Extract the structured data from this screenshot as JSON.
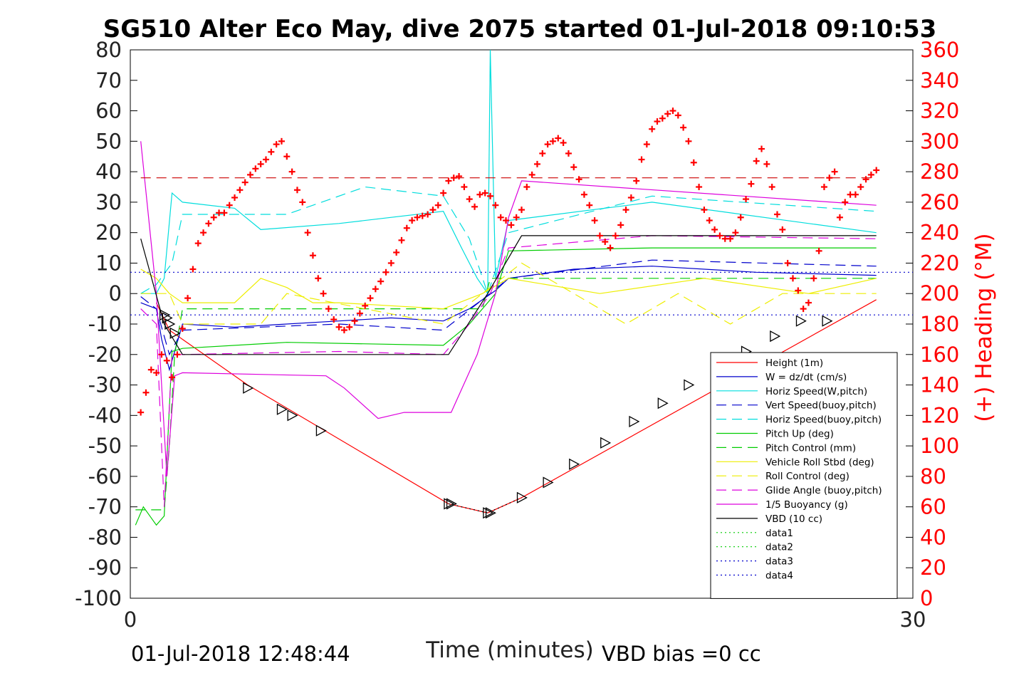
{
  "chart_data": {
    "type": "line",
    "title": "SG510 Alter Eco May, dive 2075 started 01-Jul-2018 09:10:53",
    "xlabel": "Time (minutes)",
    "ylabel_right": "(+) Heading (°M)",
    "xlim": [
      0,
      30
    ],
    "ylim": [
      -100,
      80
    ],
    "ylim_right": [
      0,
      360
    ],
    "x_ticks": [
      "0",
      "30"
    ],
    "y_ticks": [
      "80",
      "70",
      "60",
      "50",
      "40",
      "30",
      "20",
      "10",
      "0",
      "-10",
      "-20",
      "-30",
      "-40",
      "-50",
      "-60",
      "-70",
      "-80",
      "-90",
      "-100"
    ],
    "y_ticks_right": [
      "360",
      "340",
      "320",
      "300",
      "280",
      "260",
      "240",
      "220",
      "200",
      "180",
      "160",
      "140",
      "120",
      "100",
      "80",
      "60",
      "40",
      "20",
      "0"
    ],
    "grid": false,
    "legend_position": "lower-right",
    "footer_left": "01-Jul-2018 12:48:44",
    "footer_right": "VBD bias =0 cc",
    "series": [
      {
        "name": "Height (1m)",
        "color": "#ff0000",
        "style": "solid",
        "x": [
          1.0,
          1.5,
          4.5,
          12.2,
          13.7,
          15.0,
          28.6
        ],
        "y": [
          -3,
          -12,
          -30,
          -69,
          -72,
          -67,
          -2
        ]
      },
      {
        "name": "W = dz/dt (cm/s)",
        "color": "#0000cc",
        "style": "solid",
        "x": [
          0.4,
          1.0,
          1.2,
          1.5,
          2.0,
          4.0,
          8.0,
          10.0,
          12.0,
          13.0,
          14.0,
          14.5,
          17.0,
          20.0,
          24.0,
          28.6
        ],
        "y": [
          -3,
          -5,
          -15,
          -25,
          -10,
          -11,
          -9,
          -8,
          -9,
          -5,
          1,
          5,
          8,
          9,
          7,
          6
        ]
      },
      {
        "name": "Horiz Speed(W,pitch)",
        "color": "#00dddd",
        "style": "solid",
        "x": [
          0.4,
          1.0,
          1.3,
          1.6,
          2.0,
          4.0,
          5.0,
          8.0,
          12.0,
          12.7,
          13.3,
          13.7,
          13.8,
          14.0,
          14.5,
          20.0,
          28.6
        ],
        "y": [
          0,
          0,
          5,
          33,
          30,
          28,
          21,
          23,
          27,
          15,
          5,
          0,
          80,
          5,
          24,
          30,
          20
        ]
      },
      {
        "name": "Vert Speed(buoy,pitch)",
        "color": "#0000cc",
        "style": "dash",
        "x": [
          0.4,
          1.0,
          1.5,
          2.0,
          8.0,
          12.0,
          13.5,
          14.5,
          20.0,
          28.6
        ],
        "y": [
          -1,
          -5,
          -20,
          -12,
          -10,
          -12,
          -2,
          5,
          11,
          9
        ]
      },
      {
        "name": "Horiz Speed(buoy,pitch)",
        "color": "#00dddd",
        "style": "dash",
        "x": [
          0.4,
          1.0,
          1.6,
          2.0,
          6.0,
          9.0,
          12.0,
          13.0,
          13.7,
          14.5,
          20.0,
          28.6
        ],
        "y": [
          0,
          3,
          10,
          26,
          26,
          35,
          32,
          18,
          0,
          20,
          32,
          27
        ]
      },
      {
        "name": "Pitch Up (deg)",
        "color": "#00cc00",
        "style": "solid",
        "x": [
          0.2,
          0.5,
          1.0,
          1.3,
          1.6,
          2.0,
          6.0,
          12.0,
          13.0,
          14.0,
          14.5,
          20.0,
          28.6
        ],
        "y": [
          -76,
          -70,
          -76,
          -73,
          -19,
          -18,
          -16,
          -17,
          -10,
          0,
          14,
          15,
          15
        ]
      },
      {
        "name": "Pitch Control (mm)",
        "color": "#00cc00",
        "style": "dash",
        "x": [
          0.2,
          1.3,
          1.5,
          1.7,
          2.0,
          12.2,
          13.5,
          13.8,
          28.6
        ],
        "y": [
          -71,
          -71,
          -50,
          -20,
          -5,
          -5,
          -5,
          5,
          5
        ]
      },
      {
        "name": "Vehicle Roll Stbd (deg)",
        "color": "#eeee00",
        "style": "solid",
        "x": [
          0.4,
          1.0,
          1.5,
          2.0,
          4.0,
          5.0,
          6.0,
          7.0,
          8.0,
          12.0,
          13.5,
          14.5,
          18.0,
          22.0,
          26.0,
          28.6
        ],
        "y": [
          8,
          5,
          0,
          -3,
          -3,
          5,
          2,
          -3,
          -3,
          -5,
          0,
          5,
          0,
          5,
          0,
          5
        ]
      },
      {
        "name": "Roll Control (deg)",
        "color": "#eeee00",
        "style": "dash",
        "x": [
          0.4,
          1.5,
          2.0,
          5.0,
          6.0,
          12.0,
          13.5,
          15.0,
          17.0,
          19.0,
          21.0,
          23.0,
          25.0,
          28.6
        ],
        "y": [
          0,
          0,
          -10,
          -10,
          0,
          -10,
          0,
          10,
          0,
          -10,
          0,
          -10,
          0,
          0
        ]
      },
      {
        "name": "Glide Angle (buoy,pitch)",
        "color": "#dd00dd",
        "style": "dash",
        "x": [
          0.4,
          1.0,
          1.3,
          1.6,
          2.0,
          8.0,
          12.0,
          13.0,
          13.8,
          14.5,
          20.0,
          28.6
        ],
        "y": [
          -5,
          -10,
          -70,
          -20,
          -20,
          -19,
          -20,
          -10,
          0,
          15,
          19,
          18
        ]
      },
      {
        "name": "1/5 Buoyancy (g)",
        "color": "#dd00dd",
        "style": "solid",
        "x": [
          0.4,
          1.0,
          1.4,
          1.7,
          2.0,
          7.5,
          8.2,
          9.5,
          10.5,
          12.0,
          12.3,
          13.3,
          14.0,
          14.5,
          15.0,
          28.6
        ],
        "y": [
          50,
          0,
          -60,
          -27,
          -26,
          -27,
          -31,
          -41,
          -39,
          -39,
          -39,
          -20,
          0,
          25,
          37,
          29
        ]
      },
      {
        "name": "VBD (10 cc)",
        "color": "#000000",
        "style": "solid",
        "x": [
          0.4,
          1.3,
          2.0,
          12.2,
          13.7,
          15.0,
          28.6
        ],
        "y": [
          18,
          -10,
          -20,
          -20,
          0,
          19,
          19
        ]
      },
      {
        "name": "data1",
        "color": "#00cc00",
        "style": "dot",
        "x": [],
        "y": []
      },
      {
        "name": "data2",
        "color": "#00cc00",
        "style": "dot",
        "x": [],
        "y": []
      },
      {
        "name": "data3",
        "color": "#0000cc",
        "style": "dot",
        "x": [
          0,
          30
        ],
        "y": [
          7,
          7
        ]
      },
      {
        "name": "data4",
        "color": "#0000cc",
        "style": "dot",
        "x": [
          0,
          30
        ],
        "y": [
          -7,
          -7
        ]
      }
    ],
    "extra_lines": [
      {
        "color": "#cc0000",
        "style": "dash",
        "x": [
          0.4,
          28.6
        ],
        "y": [
          38,
          38
        ]
      },
      {
        "color": "#000000",
        "style": "dot",
        "x": [
          12.2,
          13.7,
          15.0
        ],
        "y": [
          -69,
          -72,
          -67
        ]
      }
    ],
    "markers": {
      "shape": "triangle-right",
      "color": "#000000",
      "x": [
        1.3,
        1.4,
        1.5,
        1.7,
        4.5,
        5.8,
        6.2,
        7.3,
        12.2,
        12.3,
        13.7,
        13.8,
        15.0,
        16.0,
        17.0,
        18.2,
        19.3,
        20.4,
        21.4,
        22.5,
        23.6,
        24.7,
        25.7,
        26.7
      ],
      "y": [
        -7,
        -8,
        -10,
        -13,
        -31,
        -38,
        -40,
        -45,
        -69,
        -69,
        -72,
        -72,
        -67,
        -62,
        -56,
        -49,
        -42,
        -36,
        -30,
        -26,
        -19,
        -14,
        -9,
        -9
      ]
    },
    "heading_right_axis": {
      "marker": "plus",
      "color": "#ff0000",
      "x": [
        0.4,
        0.6,
        0.8,
        1.0,
        1.2,
        1.4,
        1.6,
        1.8,
        2.0,
        2.2,
        2.4,
        2.6,
        2.8,
        3.0,
        3.2,
        3.4,
        3.6,
        3.8,
        4.0,
        4.2,
        4.4,
        4.6,
        4.8,
        5.0,
        5.2,
        5.4,
        5.6,
        5.8,
        6.0,
        6.2,
        6.4,
        6.6,
        6.8,
        7.0,
        7.2,
        7.4,
        7.6,
        7.8,
        8.0,
        8.2,
        8.4,
        8.6,
        8.8,
        9.0,
        9.2,
        9.4,
        9.6,
        9.8,
        10.0,
        10.2,
        10.4,
        10.6,
        10.8,
        11.0,
        11.2,
        11.4,
        11.6,
        11.8,
        12.0,
        12.2,
        12.4,
        12.6,
        12.8,
        13.0,
        13.2,
        13.4,
        13.6,
        13.8,
        14.0,
        14.2,
        14.4,
        14.6,
        14.8,
        15.0,
        15.2,
        15.4,
        15.6,
        15.8,
        16.0,
        16.2,
        16.4,
        16.6,
        16.8,
        17.0,
        17.2,
        17.4,
        17.6,
        17.8,
        18.0,
        18.2,
        18.4,
        18.6,
        18.8,
        19.0,
        19.2,
        19.4,
        19.6,
        19.8,
        20.0,
        20.2,
        20.4,
        20.6,
        20.8,
        21.0,
        21.2,
        21.4,
        21.6,
        21.8,
        22.0,
        22.2,
        22.4,
        22.6,
        22.8,
        23.0,
        23.2,
        23.4,
        23.6,
        23.8,
        24.0,
        24.2,
        24.4,
        24.6,
        24.8,
        25.0,
        25.2,
        25.4,
        25.6,
        25.8,
        26.0,
        26.2,
        26.4,
        26.6,
        26.8,
        27.0,
        27.2,
        27.4,
        27.6,
        27.8,
        28.0,
        28.2,
        28.4,
        28.6
      ],
      "y": [
        122,
        135,
        150,
        148,
        160,
        156,
        145,
        160,
        177,
        197,
        216,
        233,
        240,
        246,
        250,
        253,
        253,
        258,
        263,
        268,
        273,
        278,
        282,
        285,
        288,
        293,
        298,
        300,
        290,
        280,
        268,
        260,
        240,
        225,
        210,
        200,
        190,
        183,
        178,
        176,
        178,
        182,
        187,
        192,
        197,
        203,
        208,
        214,
        220,
        227,
        235,
        243,
        248,
        250,
        251,
        252,
        255,
        258,
        266,
        274,
        276,
        277,
        270,
        262,
        257,
        265,
        266,
        264,
        258,
        250,
        248,
        245,
        250,
        255,
        270,
        278,
        285,
        292,
        298,
        300,
        302,
        299,
        292,
        283,
        275,
        265,
        258,
        248,
        238,
        234,
        230,
        238,
        245,
        255,
        263,
        274,
        288,
        298,
        308,
        313,
        315,
        318,
        320,
        317,
        309,
        300,
        286,
        270,
        255,
        248,
        242,
        238,
        236,
        236,
        240,
        250,
        262,
        272,
        287,
        295,
        285,
        270,
        252,
        242,
        220,
        210,
        202,
        190,
        194,
        210,
        228,
        270,
        276,
        280,
        250,
        260,
        265,
        265,
        270,
        275,
        278,
        281
      ]
    }
  }
}
